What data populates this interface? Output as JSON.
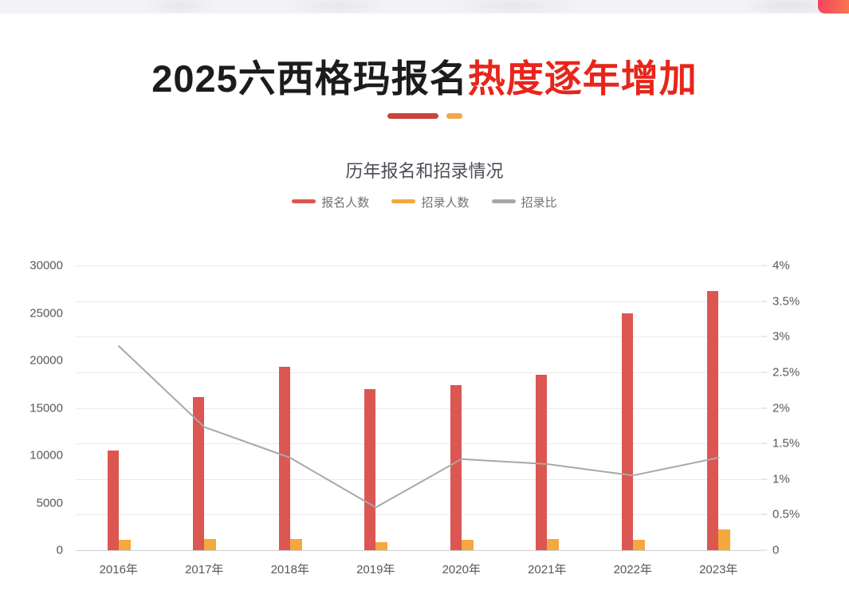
{
  "page_title": {
    "prefix_black": "2025六西格玛报名",
    "highlight_red": "热度逐年增加"
  },
  "decor": {
    "underline_red": "#c9433d",
    "underline_orange": "#f4a44c"
  },
  "corner_button": {
    "gradient_start": "#f5485c",
    "gradient_end": "#f97c4c"
  },
  "chart_data": {
    "type": "bar",
    "title": "历年报名和招录情况",
    "legend_position": "top-center",
    "grid": {
      "horizontal_lines": true,
      "line_count": 9,
      "color": "#ebebeb"
    },
    "categories": [
      "2016年",
      "2017年",
      "2018年",
      "2019年",
      "2020年",
      "2021年",
      "2022年",
      "2023年"
    ],
    "series": [
      {
        "name": "报名人数",
        "type": "bar",
        "yaxis": "left",
        "color": "#dc5652",
        "values": [
          10500,
          16100,
          19300,
          17000,
          17400,
          18500,
          25000,
          27300
        ]
      },
      {
        "name": "招录人数",
        "type": "bar",
        "yaxis": "left",
        "color": "#f4a83e",
        "values": [
          1100,
          1200,
          1200,
          800,
          1100,
          1200,
          1100,
          2200
        ]
      },
      {
        "name": "招录比",
        "type": "line",
        "yaxis": "right",
        "color": "#a8a8a8",
        "values_percent": [
          2.87,
          1.73,
          1.3,
          0.6,
          1.28,
          1.21,
          1.05,
          1.3
        ]
      }
    ],
    "left_axis": {
      "min": 0,
      "max": 30000,
      "interval": 5000,
      "tick_labels": [
        "0",
        "5000",
        "10000",
        "15000",
        "20000",
        "25000",
        "30000"
      ]
    },
    "right_axis": {
      "min_percent": 0,
      "max_percent": 4,
      "interval_percent": 0.5,
      "tick_labels": [
        "0",
        "0.5%",
        "1%",
        "1.5%",
        "2%",
        "2.5%",
        "3%",
        "3.5%",
        "4%"
      ]
    }
  }
}
